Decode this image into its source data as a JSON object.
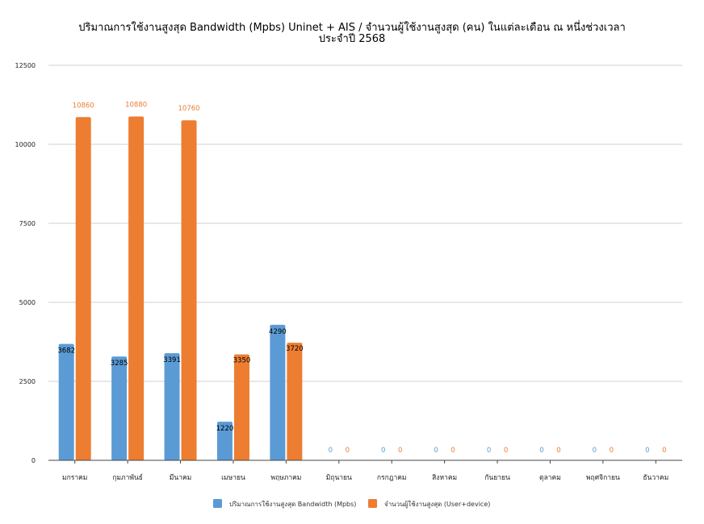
{
  "chart_data": {
    "type": "bar",
    "title": "ปริมาณการใช้งานสูงสุด Bandwidth (Mpbs) Uninet + AIS / จำนวนผู้ใช้งานสูงสุด (คน) ในแต่ละเดือน ณ หนึ่งช่วงเวลา",
    "subtitle": "ประจำปี 2568",
    "xlabel": "",
    "ylabel": "",
    "ylim": [
      0,
      12500
    ],
    "yticks": [
      0,
      2500,
      5000,
      7500,
      10000,
      12500
    ],
    "grid": true,
    "legend_position": "bottom",
    "categories": [
      "มกราคม",
      "กุมภาพันธ์",
      "มีนาคม",
      "เมษายน",
      "พฤษภาคม",
      "มิถุนายน",
      "กรกฎาคม",
      "สิงหาคม",
      "กันยายน",
      "ตุลาคม",
      "พฤศจิกายน",
      "ธันวาคม"
    ],
    "series": [
      {
        "name": "ปริมาณการใช้งานสูงสุด Bandwidth (Mpbs)",
        "color": "#5b9bd5",
        "label_color": "#5b9bd5",
        "values": [
          3682,
          3285,
          3391,
          1220,
          4290,
          0,
          0,
          0,
          0,
          0,
          0,
          0
        ]
      },
      {
        "name": "จำนวนผู้ใช้งานสูงสุด (User+device)",
        "color": "#ed7d31",
        "label_color": "#ed7d31",
        "values": [
          10860,
          10880,
          10760,
          3350,
          3720,
          0,
          0,
          0,
          0,
          0,
          0,
          0
        ]
      }
    ]
  }
}
